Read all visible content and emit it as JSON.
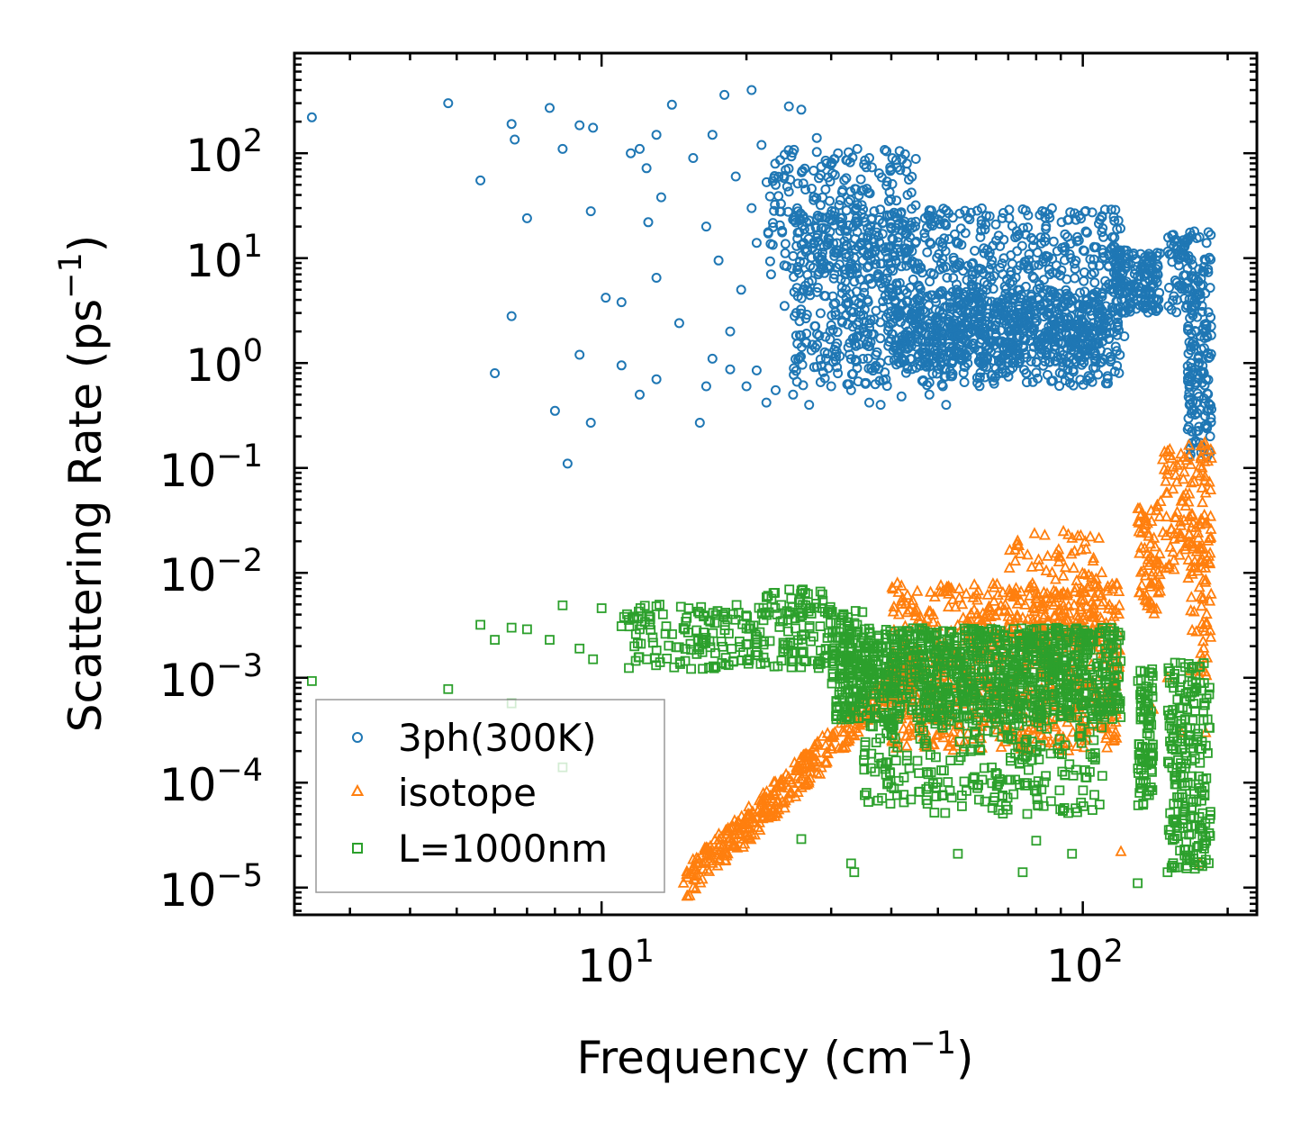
{
  "chart_data": {
    "type": "scatter",
    "xscale": "log",
    "yscale": "log",
    "xlim": [
      2.3,
      230
    ],
    "ylim": [
      5.5e-06,
      900
    ],
    "xlabel": "Frequency (cm",
    "xlabel_sup": "−1",
    "xlabel_close": ")",
    "ylabel": "Scattering Rate (ps",
    "ylabel_sup": "−1",
    "ylabel_close": ")",
    "x_ticks": [
      {
        "base": "10",
        "exp": "1",
        "value": 10
      },
      {
        "base": "10",
        "exp": "2",
        "value": 100
      }
    ],
    "y_ticks": [
      {
        "base": "10",
        "exp": "2",
        "value": 100
      },
      {
        "base": "10",
        "exp": "1",
        "value": 10
      },
      {
        "base": "10",
        "exp": "0",
        "value": 1
      },
      {
        "base": "10",
        "exp": "−1",
        "value": 0.1
      },
      {
        "base": "10",
        "exp": "−2",
        "value": 0.01
      },
      {
        "base": "10",
        "exp": "−3",
        "value": 0.001
      },
      {
        "base": "10",
        "exp": "−4",
        "value": 0.0001
      },
      {
        "base": "10",
        "exp": "−5",
        "value": 1e-05
      }
    ],
    "legend_location": "lower-left",
    "series": [
      {
        "name": "3ph(300K)",
        "marker": "circle",
        "color": "#1f77b4",
        "points": [
          [
            2.5,
            220
          ],
          [
            4.8,
            300
          ],
          [
            5.6,
            55
          ],
          [
            6.5,
            190
          ],
          [
            6.6,
            135
          ],
          [
            7.8,
            270
          ],
          [
            8.3,
            110
          ],
          [
            9.0,
            185
          ],
          [
            9.6,
            175
          ],
          [
            11.5,
            100
          ],
          [
            12.0,
            110
          ],
          [
            12.4,
            72
          ],
          [
            13.0,
            150
          ],
          [
            13.3,
            38
          ],
          [
            14.0,
            290
          ],
          [
            15.5,
            90
          ],
          [
            17.0,
            150
          ],
          [
            18.0,
            360
          ],
          [
            19.0,
            60
          ],
          [
            20.5,
            400
          ],
          [
            21.5,
            120
          ],
          [
            23.0,
            50
          ],
          [
            24.5,
            280
          ],
          [
            26.0,
            260
          ],
          [
            28.0,
            140
          ],
          [
            31.0,
            100
          ],
          [
            34.0,
            110
          ],
          [
            36.0,
            90
          ],
          [
            40.0,
            70
          ],
          [
            7.0,
            24
          ],
          [
            9.5,
            28
          ],
          [
            10.2,
            4.2
          ],
          [
            11.0,
            3.8
          ],
          [
            12.5,
            22
          ],
          [
            13.0,
            6.5
          ],
          [
            14.5,
            2.4
          ],
          [
            16.5,
            20
          ],
          [
            17.5,
            9.5
          ],
          [
            18.5,
            2.0
          ],
          [
            19.5,
            5.0
          ],
          [
            20.5,
            30
          ],
          [
            21.0,
            14
          ],
          [
            22.5,
            7.0
          ],
          [
            24.0,
            3.5
          ],
          [
            6.5,
            2.8
          ],
          [
            6.0,
            0.8
          ],
          [
            8.0,
            0.35
          ],
          [
            8.5,
            0.11
          ],
          [
            9.5,
            0.27
          ],
          [
            9.0,
            1.2
          ],
          [
            11.0,
            0.95
          ],
          [
            12.0,
            0.5
          ],
          [
            13.0,
            0.7
          ],
          [
            16.0,
            0.27
          ],
          [
            16.5,
            0.6
          ],
          [
            17.0,
            1.1
          ],
          [
            18.5,
            0.87
          ],
          [
            20.0,
            0.6
          ],
          [
            21.0,
            0.85
          ],
          [
            22.0,
            0.42
          ],
          [
            23.0,
            0.55
          ],
          [
            25.0,
            0.5
          ],
          [
            27.0,
            0.4
          ],
          [
            30.0,
            0.6
          ],
          [
            33.0,
            0.55
          ],
          [
            36.0,
            0.42
          ],
          [
            38.0,
            0.4
          ],
          [
            42.0,
            0.48
          ],
          [
            48.0,
            0.5
          ],
          [
            52.0,
            0.4
          ],
          [
            118.0,
            2.2
          ],
          [
            122.0,
            1.8
          ]
        ],
        "clusters": [
          {
            "xmin": 22,
            "xmax": 45,
            "ymin": 8,
            "ymax": 110,
            "n": 230
          },
          {
            "xmin": 25,
            "xmax": 120,
            "ymin": 0.6,
            "ymax": 30,
            "n": 1100
          },
          {
            "xmin": 40,
            "xmax": 110,
            "ymin": 1.0,
            "ymax": 5.0,
            "n": 500
          },
          {
            "xmin": 115,
            "xmax": 145,
            "ymin": 3.0,
            "ymax": 12,
            "n": 160
          },
          {
            "xmin": 150,
            "xmax": 185,
            "ymin": 3.0,
            "ymax": 18,
            "n": 110
          },
          {
            "xmin": 165,
            "xmax": 185,
            "ymin": 0.12,
            "ymax": 3.0,
            "n": 120
          }
        ]
      },
      {
        "name": "isotope",
        "marker": "triangle",
        "color": "#ff7f0e",
        "points": [
          [
            14.8,
            1.1e-05
          ],
          [
            15.5,
            1e-05
          ],
          [
            16.2,
            1.2e-05
          ],
          [
            17.0,
            1.7e-05
          ],
          [
            18.0,
            2e-05
          ],
          [
            120,
            2.2e-05
          ],
          [
            140,
            0.0005
          ],
          [
            150,
            0.001
          ],
          [
            160,
            0.0003
          ],
          [
            175,
            1.7e-05
          ],
          [
            180,
            0.0003
          ]
        ],
        "clusters": [
          {
            "line": true,
            "xmin": 15,
            "xmax": 45,
            "ylo": 1.1e-05,
            "yhi": 0.0013,
            "spread": 0.35,
            "n": 380
          },
          {
            "xmin": 40,
            "xmax": 120,
            "ymin": 0.0002,
            "ymax": 0.008,
            "n": 700
          },
          {
            "xmin": 70,
            "xmax": 110,
            "ymin": 0.002,
            "ymax": 0.025,
            "n": 120
          },
          {
            "xmin": 130,
            "xmax": 145,
            "ymin": 0.004,
            "ymax": 0.05,
            "n": 70
          },
          {
            "xmin": 145,
            "xmax": 185,
            "ymin": 0.01,
            "ymax": 0.18,
            "n": 120
          },
          {
            "xmin": 165,
            "xmax": 185,
            "ymin": 0.001,
            "ymax": 0.02,
            "n": 50
          }
        ]
      },
      {
        "name": "L=1000nm",
        "marker": "square",
        "color": "#2ca02c",
        "points": [
          [
            2.5,
            0.00093
          ],
          [
            4.8,
            0.00078
          ],
          [
            5.6,
            0.0032
          ],
          [
            6.0,
            0.0023
          ],
          [
            6.5,
            0.003
          ],
          [
            7.0,
            0.0029
          ],
          [
            7.8,
            0.0023
          ],
          [
            8.3,
            0.0049
          ],
          [
            9.0,
            0.0019
          ],
          [
            9.6,
            0.0015
          ],
          [
            10.0,
            0.0046
          ],
          [
            11.0,
            0.0031
          ],
          [
            12.0,
            0.0029
          ],
          [
            13.0,
            0.0048
          ],
          [
            6.5,
            0.00057
          ],
          [
            8.3,
            0.00014
          ],
          [
            26.0,
            2.9e-05
          ],
          [
            33.0,
            1.7e-05
          ],
          [
            33.5,
            1.4e-05
          ],
          [
            55.0,
            2.1e-05
          ],
          [
            75.0,
            1.4e-05
          ],
          [
            80.0,
            2.8e-05
          ],
          [
            95.0,
            2.1e-05
          ],
          [
            130.0,
            1.1e-05
          ],
          [
            150.0,
            1.4e-05
          ]
        ],
        "clusters": [
          {
            "xmin": 11,
            "xmax": 35,
            "ymin": 0.0012,
            "ymax": 0.005,
            "n": 250
          },
          {
            "xmin": 22,
            "xmax": 30,
            "ymin": 0.004,
            "ymax": 0.007,
            "n": 30
          },
          {
            "xmin": 30,
            "xmax": 120,
            "ymin": 0.0004,
            "ymax": 0.003,
            "n": 1100
          },
          {
            "xmin": 35,
            "xmax": 110,
            "ymin": 5e-05,
            "ymax": 0.0004,
            "n": 250
          },
          {
            "xmin": 130,
            "xmax": 140,
            "ymin": 6e-05,
            "ymax": 0.0013,
            "n": 90
          },
          {
            "xmin": 150,
            "xmax": 185,
            "ymin": 1.5e-05,
            "ymax": 0.0014,
            "n": 220
          }
        ]
      }
    ]
  }
}
